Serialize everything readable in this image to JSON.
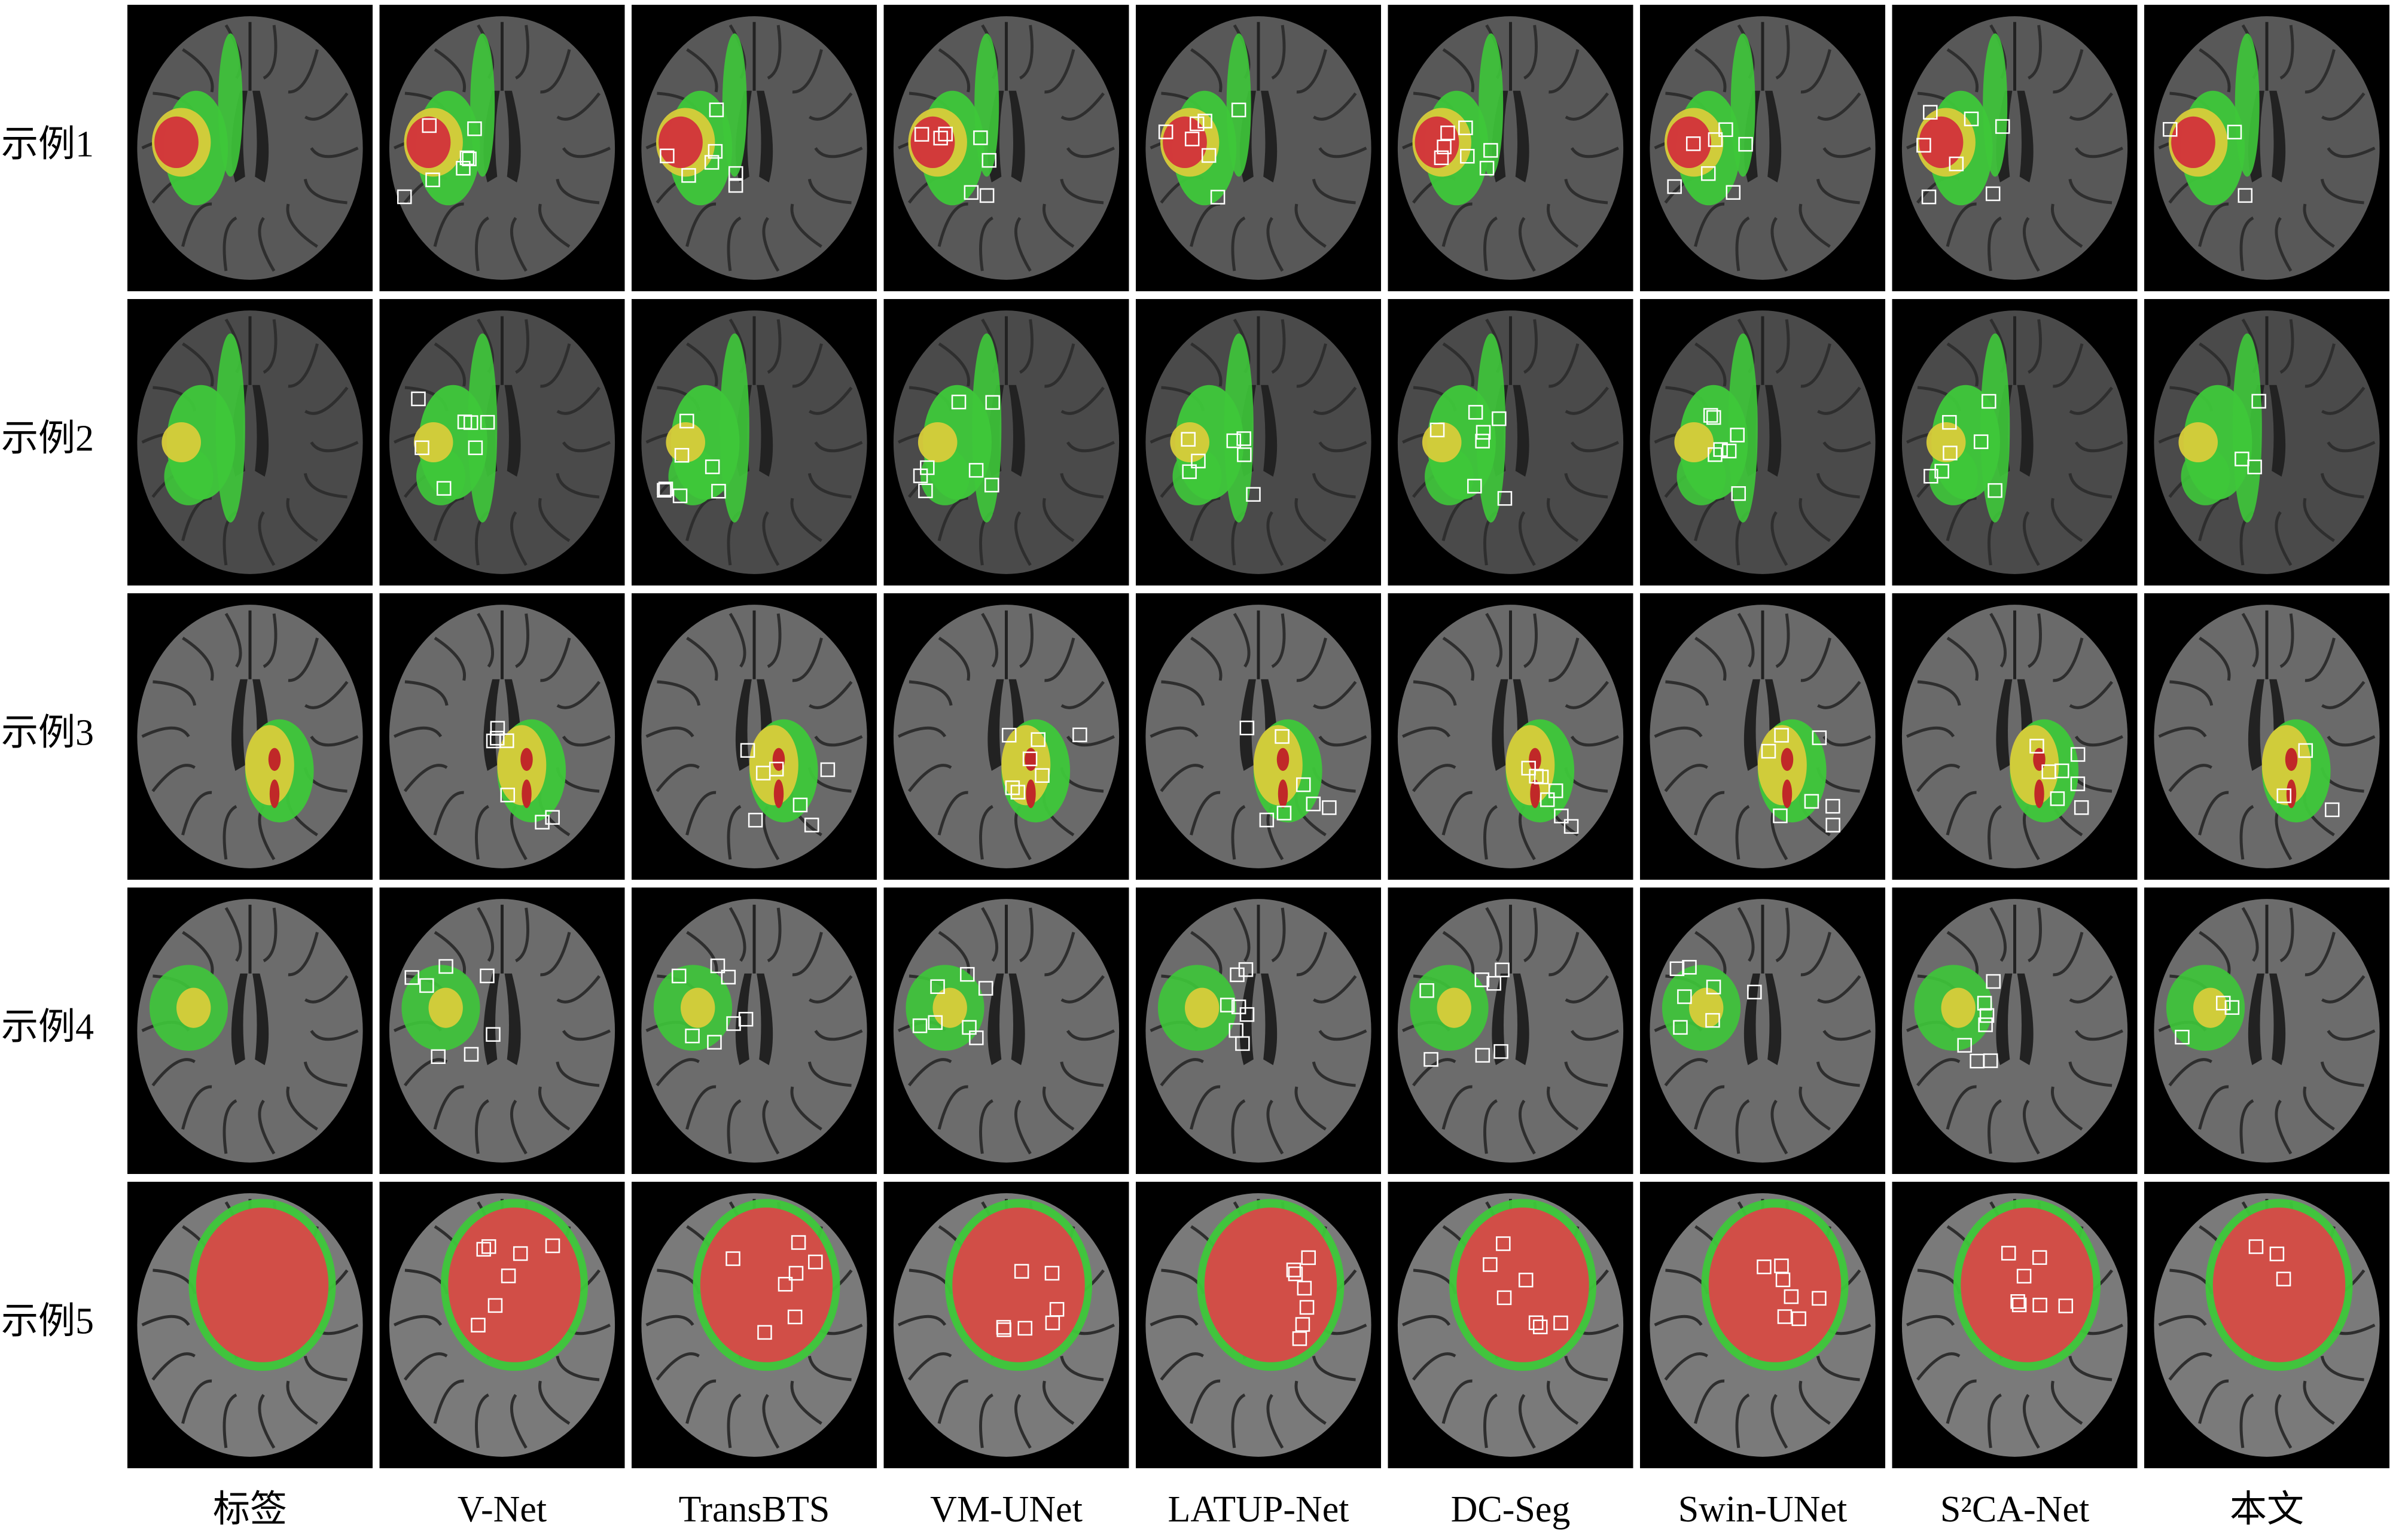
{
  "row_labels": [
    "示例1",
    "示例2",
    "示例3",
    "示例4",
    "示例5"
  ],
  "column_labels": [
    "标签",
    "V-Net",
    "TransBTS",
    "VM-UNet",
    "LATUP-Net",
    "DC-Seg",
    "Swin-UNet",
    "S²CA-Net",
    "本文"
  ]
}
